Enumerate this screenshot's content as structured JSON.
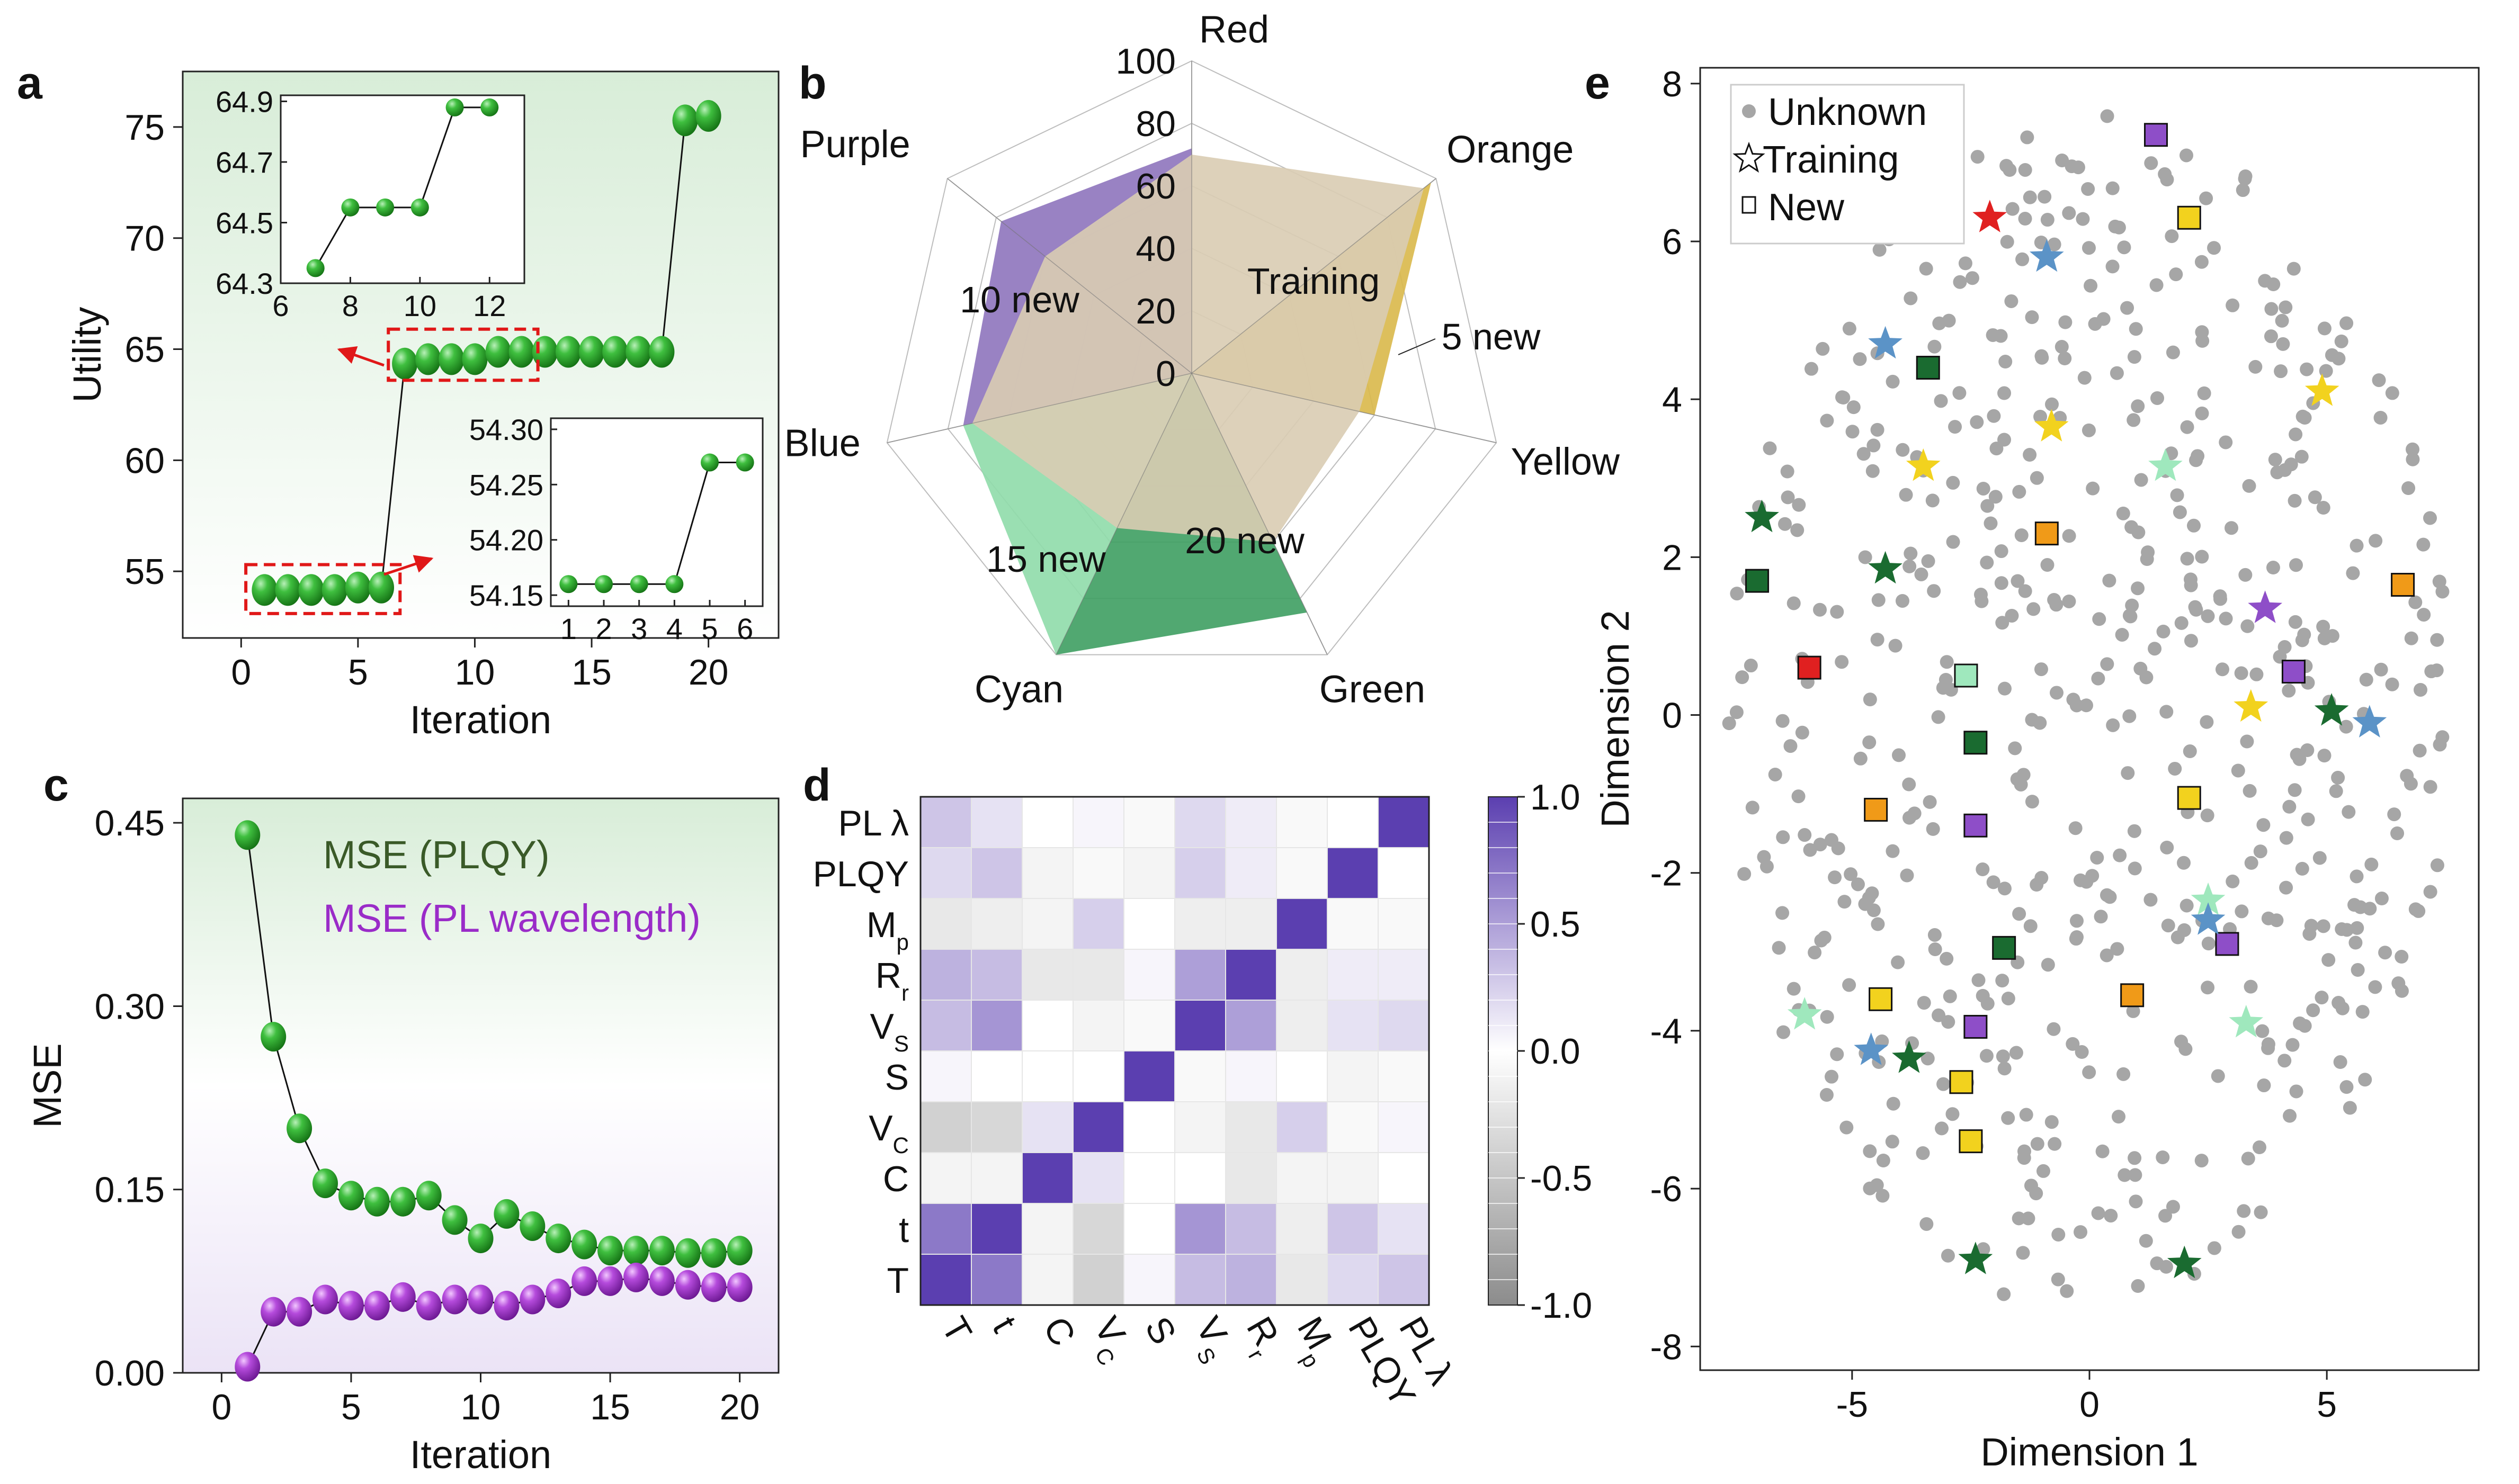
{
  "panels": {
    "a": {
      "letter": "a"
    },
    "b": {
      "letter": "b"
    },
    "c": {
      "letter": "c"
    },
    "d": {
      "letter": "d"
    },
    "e": {
      "letter": "e"
    }
  },
  "chart_data": [
    {
      "id": "a",
      "type": "scatter",
      "xlabel": "Iteration",
      "ylabel": "Utility",
      "xlim": [
        -2.5,
        23
      ],
      "ylim": [
        52,
        77.5
      ],
      "xticks": [
        0,
        5,
        10,
        15,
        20
      ],
      "yticks": [
        55,
        60,
        65,
        70,
        75
      ],
      "background": [
        "#ffffff",
        "#dcefdc"
      ],
      "marker_color": "#2e9e2e",
      "series": [
        {
          "x": [
            1,
            2,
            3,
            4,
            5,
            6,
            7,
            8,
            9,
            10,
            11,
            12,
            13,
            14,
            15,
            16,
            17,
            18,
            19,
            20
          ],
          "y": [
            54.16,
            54.16,
            54.16,
            54.16,
            54.27,
            54.27,
            64.35,
            64.55,
            64.55,
            64.55,
            64.88,
            64.88,
            64.88,
            64.88,
            64.88,
            64.88,
            64.88,
            64.88,
            75.3,
            75.5
          ]
        }
      ],
      "insets": [
        {
          "xlim": [
            6,
            13
          ],
          "ylim": [
            64.3,
            64.92
          ],
          "xticks": [
            6,
            8,
            10,
            12
          ],
          "yticks": [
            64.3,
            64.5,
            64.7,
            64.9
          ],
          "x": [
            7,
            8,
            9,
            10,
            11,
            12
          ],
          "y": [
            64.35,
            64.55,
            64.55,
            64.55,
            64.88,
            64.88
          ]
        },
        {
          "xlim": [
            0.5,
            6.5
          ],
          "ylim": [
            54.14,
            54.31
          ],
          "xticks": [
            1,
            2,
            3,
            4,
            5,
            6
          ],
          "yticks": [
            54.15,
            54.2,
            54.25,
            54.3
          ],
          "x": [
            1,
            2,
            3,
            4,
            5,
            6
          ],
          "y": [
            54.16,
            54.16,
            54.16,
            54.16,
            54.27,
            54.27
          ]
        }
      ]
    },
    {
      "id": "b",
      "type": "radar",
      "axes": [
        "Red",
        "Orange",
        "Yellow",
        "Green",
        "Cyan",
        "Blue",
        "Purple"
      ],
      "rmax": 100,
      "rticks": [
        0,
        20,
        40,
        60,
        80,
        100
      ],
      "series": [
        {
          "name": "15 new",
          "color": "#8fdcaa",
          "values": [
            0,
            0,
            0,
            0,
            100,
            75,
            0
          ]
        },
        {
          "name": "20 new",
          "color": "#3e9e62",
          "values": [
            0,
            0,
            0,
            85,
            100,
            0,
            0
          ]
        },
        {
          "name": "5 new",
          "color": "#d9b84a",
          "values": [
            0,
            98,
            60,
            0,
            0,
            0,
            0
          ]
        },
        {
          "name": "10 new",
          "color": "#8e74bd",
          "values": [
            72,
            0,
            0,
            0,
            0,
            75,
            78
          ]
        },
        {
          "name": "Training",
          "color": "#d9ccb2",
          "values": [
            70,
            95,
            55,
            60,
            55,
            72,
            60
          ]
        }
      ],
      "labels": {
        "training": "Training",
        "five": "5 new",
        "ten": "10 new",
        "fifteen": "15 new",
        "twenty": "20 new"
      }
    },
    {
      "id": "c",
      "type": "scatter",
      "xlabel": "Iteration",
      "ylabel": "MSE",
      "xlim": [
        -1.5,
        21.5
      ],
      "ylim": [
        0,
        0.47
      ],
      "xticks": [
        0,
        5,
        10,
        15,
        20
      ],
      "yticks": [
        0.0,
        0.15,
        0.3,
        0.45
      ],
      "ytick_labels": [
        "0.00",
        "0.15",
        "0.30",
        "0.45"
      ],
      "background": [
        "#dcefdc",
        "#ede6f7"
      ],
      "series": [
        {
          "name": "MSE (PLQY)",
          "color": "#2e9e2e",
          "label_color": "#3a5a28",
          "x": [
            1,
            2,
            3,
            4,
            5,
            6,
            7,
            8,
            9,
            10,
            11,
            12,
            13,
            14,
            15,
            16,
            17,
            18,
            19,
            20
          ],
          "y": [
            0.44,
            0.275,
            0.2,
            0.155,
            0.145,
            0.14,
            0.14,
            0.145,
            0.125,
            0.11,
            0.13,
            0.12,
            0.11,
            0.105,
            0.1,
            0.1,
            0.1,
            0.098,
            0.098,
            0.1
          ]
        },
        {
          "name": "MSE (PL wavelength)",
          "color": "#a23ec8",
          "label_color": "#9a2cc8",
          "x": [
            1,
            2,
            3,
            4,
            5,
            6,
            7,
            8,
            9,
            10,
            11,
            12,
            13,
            14,
            15,
            16,
            17,
            18,
            19,
            20
          ],
          "y": [
            0.005,
            0.05,
            0.05,
            0.06,
            0.055,
            0.055,
            0.062,
            0.055,
            0.06,
            0.06,
            0.055,
            0.06,
            0.065,
            0.075,
            0.075,
            0.078,
            0.075,
            0.072,
            0.07,
            0.07
          ]
        }
      ]
    },
    {
      "id": "d",
      "type": "heatmap",
      "variables": [
        "T",
        "t",
        "C",
        "V_C",
        "S",
        "V_S",
        "R_r",
        "M_p",
        "PLQY",
        "PL λ"
      ],
      "row_labels": [
        {
          "main": "PL λ",
          "sub": ""
        },
        {
          "main": "PLQY",
          "sub": ""
        },
        {
          "main": "M",
          "sub": "p"
        },
        {
          "main": "R",
          "sub": "r"
        },
        {
          "main": "V",
          "sub": "S"
        },
        {
          "main": "S",
          "sub": ""
        },
        {
          "main": "V",
          "sub": "C"
        },
        {
          "main": "C",
          "sub": ""
        },
        {
          "main": "t",
          "sub": ""
        },
        {
          "main": "T",
          "sub": ""
        }
      ],
      "col_labels": [
        {
          "main": "T",
          "sub": ""
        },
        {
          "main": "t",
          "sub": ""
        },
        {
          "main": "C",
          "sub": ""
        },
        {
          "main": "V",
          "sub": "C"
        },
        {
          "main": "S",
          "sub": ""
        },
        {
          "main": "V",
          "sub": "S"
        },
        {
          "main": "R",
          "sub": "r"
        },
        {
          "main": "M",
          "sub": "p"
        },
        {
          "main": "PLQY",
          "sub": ""
        },
        {
          "main": "PL λ",
          "sub": ""
        }
      ],
      "matrix_top_to_bottom": [
        [
          0.3,
          0.15,
          0.0,
          0.05,
          -0.05,
          0.2,
          0.1,
          -0.05,
          0.0,
          1.0
        ],
        [
          0.2,
          0.3,
          -0.1,
          -0.05,
          -0.1,
          0.25,
          0.1,
          -0.05,
          1.0,
          0.0
        ],
        [
          -0.2,
          -0.15,
          -0.1,
          0.25,
          0.0,
          -0.15,
          -0.15,
          1.0,
          -0.05,
          -0.05
        ],
        [
          0.4,
          0.35,
          -0.2,
          -0.2,
          0.05,
          0.5,
          1.0,
          -0.15,
          0.1,
          0.1
        ],
        [
          0.35,
          0.55,
          0.0,
          -0.1,
          -0.05,
          1.0,
          0.5,
          -0.15,
          0.15,
          0.2
        ],
        [
          0.05,
          0.0,
          0.0,
          0.0,
          1.0,
          -0.05,
          0.05,
          0.0,
          -0.1,
          -0.05
        ],
        [
          -0.4,
          -0.35,
          0.15,
          1.0,
          0.0,
          -0.1,
          -0.2,
          0.25,
          -0.05,
          0.05
        ],
        [
          -0.1,
          -0.1,
          1.0,
          0.15,
          0.0,
          0.0,
          -0.2,
          -0.1,
          -0.1,
          0.0
        ],
        [
          0.7,
          1.0,
          -0.1,
          -0.35,
          0.0,
          0.55,
          0.35,
          -0.15,
          0.3,
          0.15
        ],
        [
          1.0,
          0.7,
          -0.1,
          -0.4,
          0.05,
          0.35,
          0.4,
          -0.2,
          0.2,
          0.3
        ]
      ],
      "colorbar": {
        "min": -1.0,
        "max": 1.0,
        "ticks": [
          "1.0",
          "0.5",
          "0.0",
          "-0.5",
          "-1.0"
        ],
        "tick_values": [
          1.0,
          0.5,
          0.0,
          -0.5,
          -1.0
        ]
      },
      "colors": {
        "positive": "#5b3fb0",
        "neutral": "#ffffff",
        "negative": "#8c8c8c"
      }
    },
    {
      "id": "e",
      "type": "scatter",
      "xlabel": "Dimension 1",
      "ylabel": "Dimension 2",
      "xlim": [
        -8.2,
        8.2
      ],
      "ylim": [
        -8.3,
        8.2
      ],
      "xticks": [
        -5,
        0,
        5
      ],
      "yticks": [
        -8,
        -6,
        -4,
        -2,
        0,
        2,
        4,
        6,
        8
      ],
      "legend": [
        {
          "label": "Unknown",
          "marker": "circle"
        },
        {
          "label": "Training",
          "marker": "star"
        },
        {
          "label": "New",
          "marker": "square"
        }
      ],
      "unknown_color": "#a6a6a6",
      "colors": {
        "red": "#e02020",
        "orange": "#f09a18",
        "yellow": "#f2d21e",
        "green": "#1a6b30",
        "cyan": "#9fe8bd",
        "blue": "#5b93c7",
        "purple": "#8e4ec8"
      },
      "training": [
        {
          "x": -2.1,
          "y": 6.3,
          "c": "red"
        },
        {
          "x": -0.9,
          "y": 5.8,
          "c": "blue"
        },
        {
          "x": -4.3,
          "y": 4.7,
          "c": "blue"
        },
        {
          "x": 4.9,
          "y": 4.1,
          "c": "yellow"
        },
        {
          "x": -0.8,
          "y": 3.65,
          "c": "yellow"
        },
        {
          "x": -3.5,
          "y": 3.15,
          "c": "yellow"
        },
        {
          "x": 1.6,
          "y": 3.15,
          "c": "cyan"
        },
        {
          "x": -6.9,
          "y": 2.5,
          "c": "green"
        },
        {
          "x": -4.3,
          "y": 1.85,
          "c": "green"
        },
        {
          "x": 3.7,
          "y": 1.35,
          "c": "purple"
        },
        {
          "x": 3.4,
          "y": 0.1,
          "c": "yellow"
        },
        {
          "x": 5.1,
          "y": 0.05,
          "c": "green"
        },
        {
          "x": 5.9,
          "y": -0.1,
          "c": "blue"
        },
        {
          "x": 2.5,
          "y": -2.35,
          "c": "cyan"
        },
        {
          "x": 2.5,
          "y": -2.6,
          "c": "blue"
        },
        {
          "x": -6.0,
          "y": -3.8,
          "c": "cyan"
        },
        {
          "x": 3.3,
          "y": -3.9,
          "c": "cyan"
        },
        {
          "x": -4.6,
          "y": -4.25,
          "c": "blue"
        },
        {
          "x": -3.8,
          "y": -4.35,
          "c": "green"
        },
        {
          "x": -2.4,
          "y": -6.9,
          "c": "green"
        },
        {
          "x": 2.0,
          "y": -6.95,
          "c": "green"
        }
      ],
      "new": [
        {
          "x": 1.4,
          "y": 7.35,
          "c": "purple"
        },
        {
          "x": 2.1,
          "y": 6.3,
          "c": "yellow"
        },
        {
          "x": -3.4,
          "y": 4.4,
          "c": "green"
        },
        {
          "x": -0.9,
          "y": 2.3,
          "c": "orange"
        },
        {
          "x": -7.0,
          "y": 1.7,
          "c": "green"
        },
        {
          "x": 6.6,
          "y": 1.65,
          "c": "orange"
        },
        {
          "x": -5.9,
          "y": 0.6,
          "c": "red"
        },
        {
          "x": 4.3,
          "y": 0.55,
          "c": "purple"
        },
        {
          "x": -2.6,
          "y": 0.5,
          "c": "cyan"
        },
        {
          "x": -2.4,
          "y": -0.35,
          "c": "green"
        },
        {
          "x": 2.1,
          "y": -1.05,
          "c": "yellow"
        },
        {
          "x": -4.5,
          "y": -1.2,
          "c": "orange"
        },
        {
          "x": -2.4,
          "y": -1.4,
          "c": "purple"
        },
        {
          "x": 2.9,
          "y": -2.9,
          "c": "purple"
        },
        {
          "x": -1.8,
          "y": -2.95,
          "c": "green"
        },
        {
          "x": 0.9,
          "y": -3.55,
          "c": "orange"
        },
        {
          "x": -4.4,
          "y": -3.6,
          "c": "yellow"
        },
        {
          "x": -2.4,
          "y": -3.95,
          "c": "purple"
        },
        {
          "x": -2.7,
          "y": -4.65,
          "c": "yellow"
        },
        {
          "x": -2.5,
          "y": -5.4,
          "c": "yellow"
        }
      ]
    }
  ]
}
